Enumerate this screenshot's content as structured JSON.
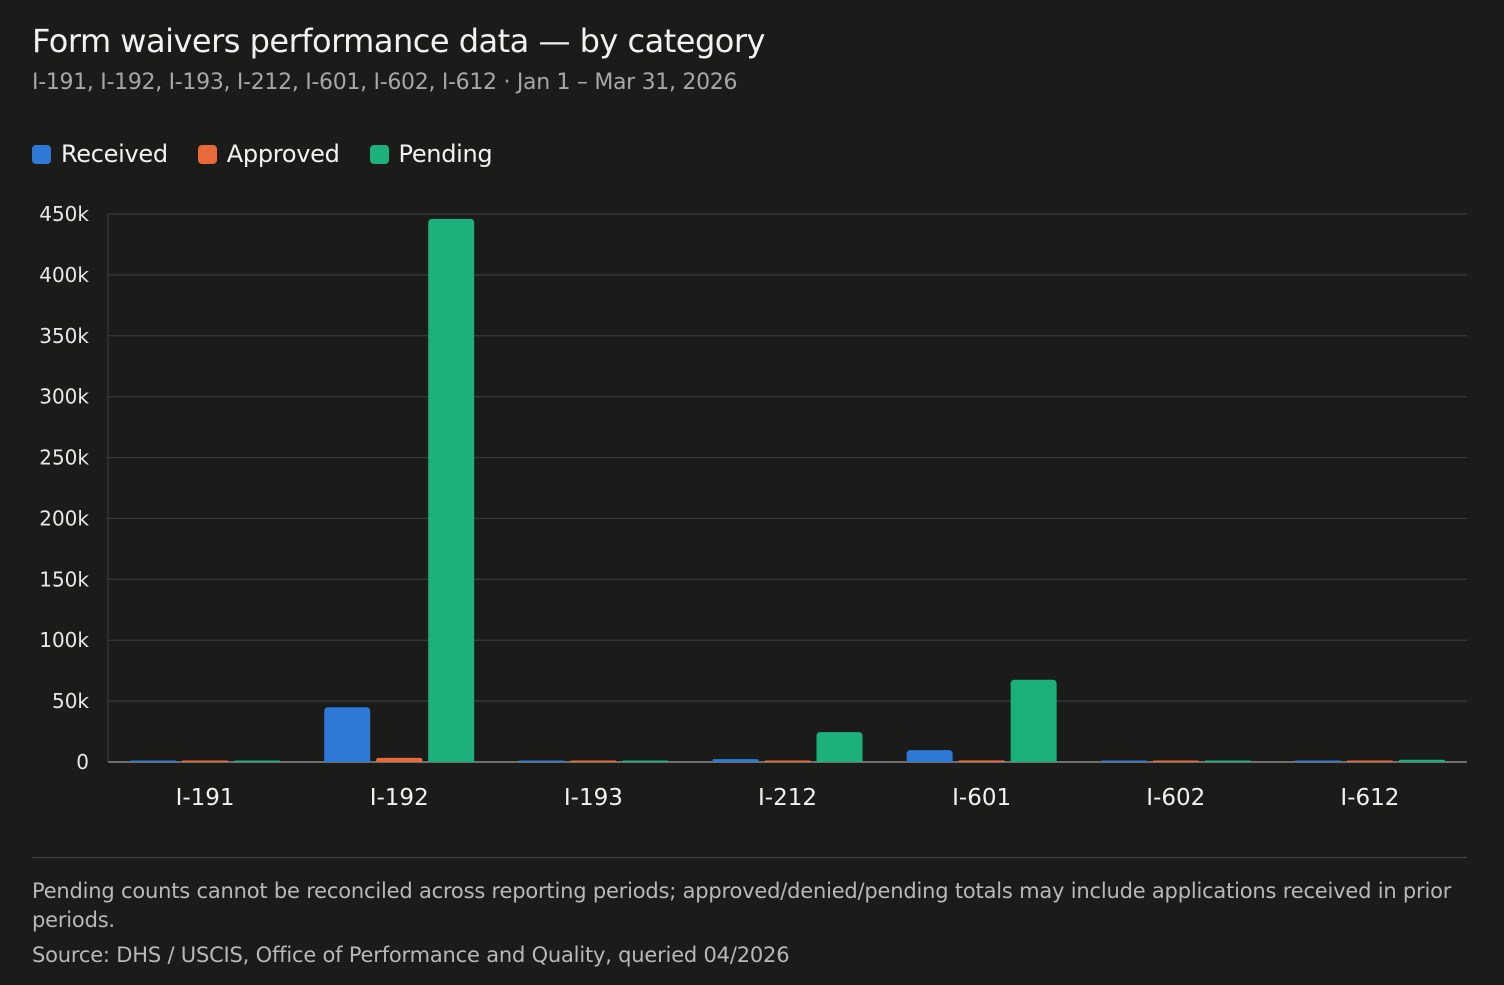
{
  "header": {
    "title": "Form waivers performance data — by category",
    "subtitle": "I-191, I-192, I-193, I-212, I-601, I-602, I-612 · Jan 1 – Mar 31, 2026"
  },
  "legend": [
    {
      "label": "Received",
      "color": "#2e78d6"
    },
    {
      "label": "Approved",
      "color": "#e8693a"
    },
    {
      "label": "Pending",
      "color": "#1cb07a"
    }
  ],
  "footer": {
    "note": "Pending counts cannot be reconciled across reporting periods; approved/denied/pending totals may include applications received in prior periods.",
    "source": "Source: DHS / USCIS, Office of Performance and Quality, queried 04/2026"
  },
  "colors": {
    "background": "#1b1b1a",
    "gridline": "#3a3a38",
    "axis": "#8a8a88"
  },
  "chart_data": {
    "type": "bar",
    "categories": [
      "I-191",
      "I-192",
      "I-193",
      "I-212",
      "I-601",
      "I-602",
      "I-612"
    ],
    "series": [
      {
        "name": "Received",
        "color": "#2e78d6",
        "values": [
          150,
          45000,
          30,
          2400,
          9800,
          350,
          80
        ]
      },
      {
        "name": "Approved",
        "color": "#e8693a",
        "values": [
          40,
          3400,
          500,
          300,
          1300,
          500,
          120
        ]
      },
      {
        "name": "Pending",
        "color": "#1cb07a",
        "values": [
          280,
          446000,
          300,
          24500,
          67500,
          200,
          1800
        ]
      }
    ],
    "yticks": [
      "0",
      "50k",
      "100k",
      "150k",
      "200k",
      "250k",
      "300k",
      "350k",
      "400k",
      "450k"
    ],
    "ylim": [
      0,
      450000
    ],
    "grid": true,
    "legend_position": "top-left",
    "xlabel": "",
    "ylabel": ""
  }
}
